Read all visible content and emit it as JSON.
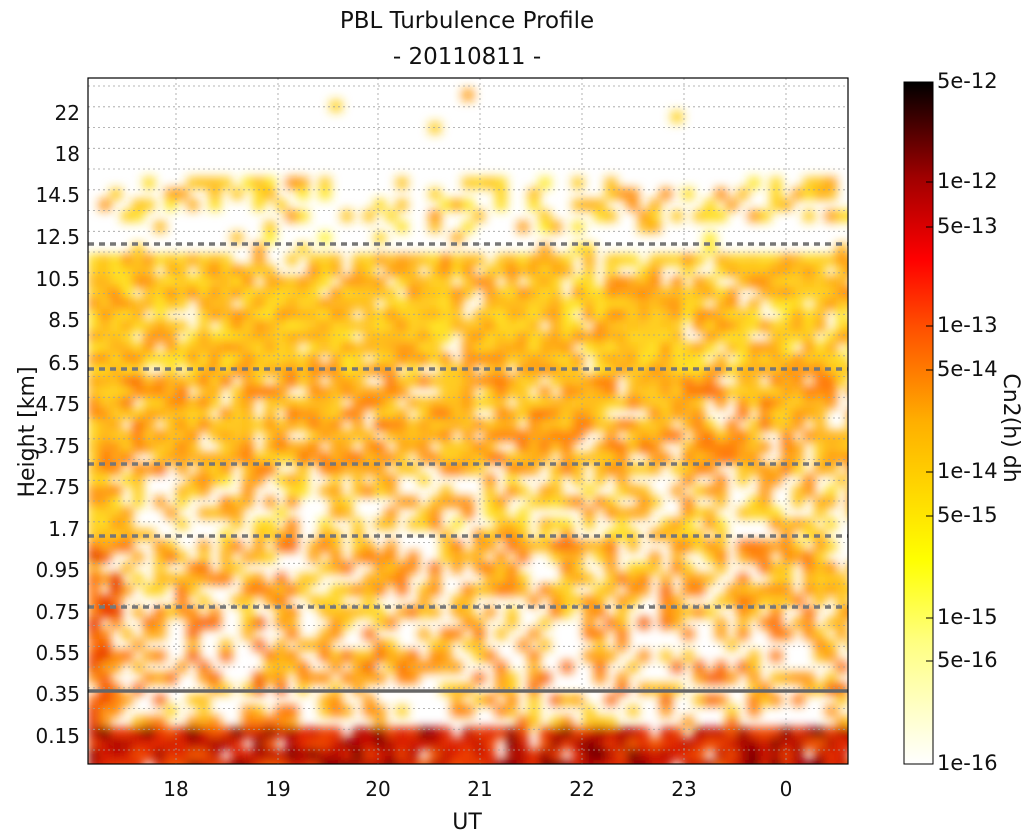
{
  "chart_data": {
    "type": "heatmap",
    "title": "PBL Turbulence Profile",
    "subtitle": "- 20110811 -",
    "xlabel": "UT",
    "ylabel": "Height [km]",
    "colorbar_label": "Cn2(h) dh",
    "x_ticks": [
      "18",
      "19",
      "20",
      "21",
      "22",
      "23",
      "0"
    ],
    "y_ticks": [
      "0.15",
      "0.35",
      "0.55",
      "0.75",
      "0.95",
      "1.7",
      "2.75",
      "3.75",
      "4.75",
      "6.5",
      "8.5",
      "10.5",
      "12.5",
      "14.5",
      "18",
      "22"
    ],
    "colorbar_ticks": [
      "5e-12",
      "1e-12",
      "5e-13",
      "1e-13",
      "5e-14",
      "1e-14",
      "5e-15",
      "1e-15",
      "5e-16",
      "1e-16"
    ],
    "colorscale": "hot (reversed)",
    "colors": {
      "background": "#ffffff",
      "gridline": "#999999",
      "dashed_line": "#777777",
      "solid_line": "#666666"
    },
    "grid": true,
    "dashed_horizontal_lines_km": [
      "12.5",
      "6.5",
      "3.75",
      "1.7",
      "0.75"
    ],
    "solid_horizontal_line_km": "0.35",
    "x_range_hours_UT": [
      "17.2",
      "24.6"
    ]
  }
}
